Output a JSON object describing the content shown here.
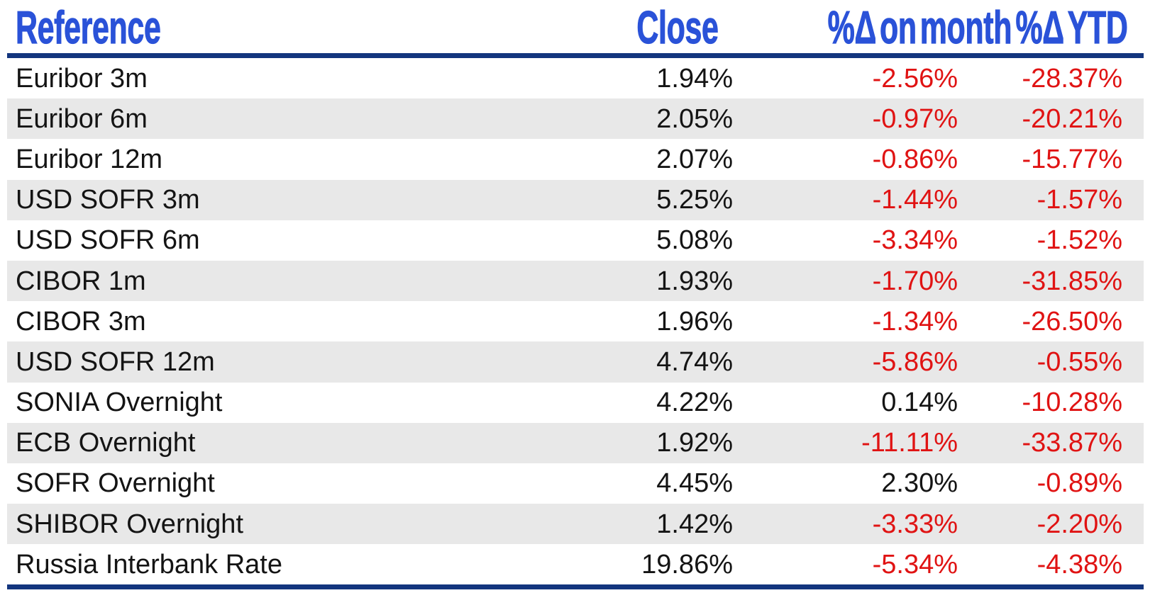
{
  "colors": {
    "header_blue": "#2a52d8",
    "rule_navy": "#13357e",
    "negative_red": "#e01313",
    "text_black": "#141414",
    "stripe_gray": "#e8e8e8"
  },
  "chart_data": {
    "type": "table",
    "legend_note": "negative values shown in red, positive in black",
    "columns": [
      {
        "key": "reference",
        "label": "Reference",
        "align": "left"
      },
      {
        "key": "close",
        "label": "Close",
        "align": "right"
      },
      {
        "key": "on_month",
        "label": "%Δ on month",
        "align": "right"
      },
      {
        "key": "ytd",
        "label": "%Δ YTD",
        "align": "right"
      }
    ],
    "rows": [
      {
        "reference": "Euribor 3m",
        "close": "1.94%",
        "on_month": "-2.56%",
        "ytd": "-28.37%"
      },
      {
        "reference": "Euribor 6m",
        "close": "2.05%",
        "on_month": "-0.97%",
        "ytd": "-20.21%"
      },
      {
        "reference": "Euribor 12m",
        "close": "2.07%",
        "on_month": "-0.86%",
        "ytd": "-15.77%"
      },
      {
        "reference": "USD SOFR 3m",
        "close": "5.25%",
        "on_month": "-1.44%",
        "ytd": "-1.57%"
      },
      {
        "reference": "USD SOFR 6m",
        "close": "5.08%",
        "on_month": "-3.34%",
        "ytd": "-1.52%"
      },
      {
        "reference": "CIBOR 1m",
        "close": "1.93%",
        "on_month": "-1.70%",
        "ytd": "-31.85%"
      },
      {
        "reference": "CIBOR 3m",
        "close": "1.96%",
        "on_month": "-1.34%",
        "ytd": "-26.50%"
      },
      {
        "reference": "USD SOFR 12m",
        "close": "4.74%",
        "on_month": "-5.86%",
        "ytd": "-0.55%"
      },
      {
        "reference": "SONIA Overnight",
        "close": "4.22%",
        "on_month": "0.14%",
        "ytd": "-10.28%"
      },
      {
        "reference": "ECB Overnight",
        "close": "1.92%",
        "on_month": "-11.11%",
        "ytd": "-33.87%"
      },
      {
        "reference": "SOFR Overnight",
        "close": "4.45%",
        "on_month": "2.30%",
        "ytd": "-0.89%"
      },
      {
        "reference": "SHIBOR Overnight",
        "close": "1.42%",
        "on_month": "-3.33%",
        "ytd": "-2.20%"
      },
      {
        "reference": "Russia Interbank Rate",
        "close": "19.86%",
        "on_month": "-5.34%",
        "ytd": "-4.38%"
      }
    ]
  }
}
